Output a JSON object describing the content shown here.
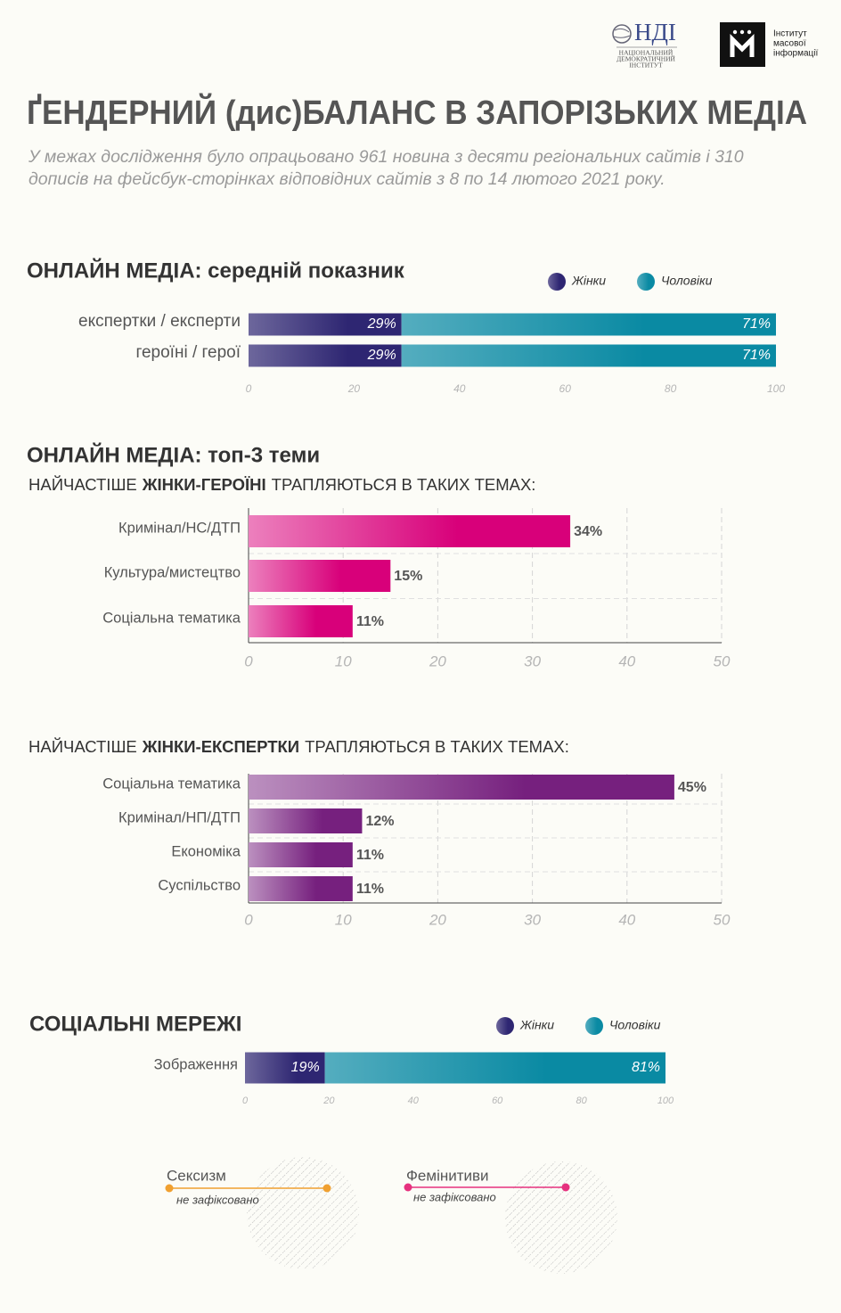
{
  "header": {
    "logo_ndi": {
      "abbr": "НДІ",
      "lines": [
        "НАЦІОНАЛЬНИЙ",
        "ДЕМОКРАТИЧНИЙ",
        "ІНСТИТУТ"
      ]
    },
    "logo_imi": {
      "lines": [
        "Інститут",
        "масової",
        "інформації"
      ]
    },
    "title": "ҐЕНДЕРНИЙ (дис)БАЛАНС В ЗАПОРІЗЬКИХ МЕДІА",
    "subtitle": "У межах дослідження було опрацьовано 961 новина з десяти регіональних сайтів і 310 дописів на фейсбук-сторінках відповідних сайтів з 8 по 14 лютого 2021 року."
  },
  "chart_data": [
    {
      "type": "bar",
      "orientation": "horizontal",
      "stacked": true,
      "title": "ОНЛАЙН МЕДІА: середній показник",
      "categories": [
        "експертки / експерти",
        "героїні / герої"
      ],
      "series": [
        {
          "name": "Жінки",
          "color": "#2e2672",
          "values": [
            29,
            29
          ],
          "value_labels": [
            "29%",
            "29%"
          ]
        },
        {
          "name": "Чоловіки",
          "color": "#0a8aa3",
          "values": [
            71,
            71
          ],
          "value_labels": [
            "71%",
            "71%"
          ]
        }
      ],
      "xlim": [
        0,
        100
      ],
      "xticks": [
        0,
        20,
        40,
        60,
        80,
        100
      ],
      "grid": false,
      "legend": "top-right"
    },
    {
      "type": "bar",
      "orientation": "horizontal",
      "title": "ОНЛАЙН МЕДІА: топ-3 теми",
      "subtitle": [
        "НАЙЧАСТІШЕ",
        "ЖІНКИ-ГЕРОЇНІ",
        "ТРАПЛЯЮТЬСЯ В ТАКИХ ТЕМАХ:"
      ],
      "categories": [
        "Кримінал/НС/ДТП",
        "Культура/мистецтво",
        "Соціальна тематика"
      ],
      "values": [
        34,
        15,
        11
      ],
      "value_labels": [
        "34%",
        "15%",
        "11%"
      ],
      "color": "#d8007a",
      "xlim": [
        0,
        50
      ],
      "xticks": [
        0,
        10,
        20,
        30,
        40,
        50
      ],
      "grid": true
    },
    {
      "type": "bar",
      "orientation": "horizontal",
      "subtitle": [
        "НАЙЧАСТІШЕ",
        "ЖІНКИ-ЕКСПЕРТКИ",
        "ТРАПЛЯЮТЬСЯ В ТАКИХ ТЕМАХ:"
      ],
      "categories": [
        "Соціальна тематика",
        "Кримінал/НП/ДТП",
        "Економіка",
        "Суспільство"
      ],
      "values": [
        45,
        12,
        11,
        11
      ],
      "value_labels": [
        "45%",
        "12%",
        "11%",
        "11%"
      ],
      "color": "#76207e",
      "xlim": [
        0,
        50
      ],
      "xticks": [
        0,
        10,
        20,
        30,
        40,
        50
      ],
      "grid": true
    },
    {
      "type": "bar",
      "orientation": "horizontal",
      "stacked": true,
      "title": "СОЦІАЛЬНІ МЕРЕЖІ",
      "categories": [
        "Зображення"
      ],
      "series": [
        {
          "name": "Жінки",
          "color": "#2e2672",
          "values": [
            19
          ],
          "value_labels": [
            "19%"
          ]
        },
        {
          "name": "Чоловіки",
          "color": "#0a8aa3",
          "values": [
            81
          ],
          "value_labels": [
            "81%"
          ]
        }
      ],
      "xlim": [
        0,
        100
      ],
      "xticks": [
        0,
        20,
        40,
        60,
        80,
        100
      ],
      "grid": false,
      "legend": "top-right"
    }
  ],
  "indicators": [
    {
      "label": "Сексизм",
      "status": "не зафіксовано",
      "color": "#f0a030"
    },
    {
      "label": "Фемінитиви",
      "status": "не зафіксовано",
      "color": "#e6317e"
    }
  ]
}
